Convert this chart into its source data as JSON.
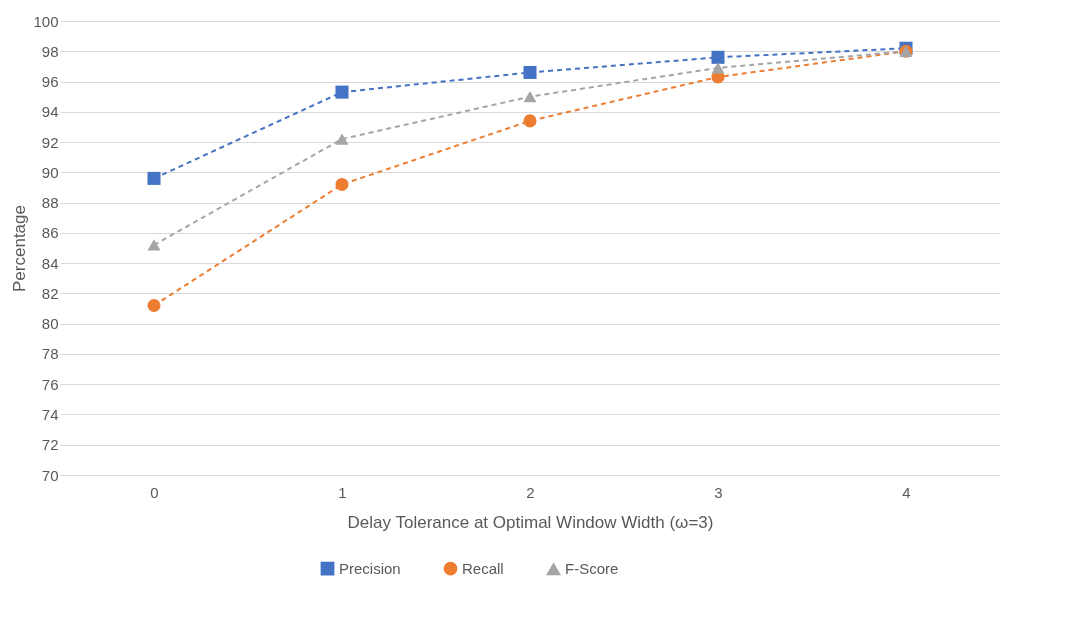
{
  "chart_data": {
    "type": "line",
    "xlabel": "Delay Tolerance at Optimal Window Width (ω=3)",
    "ylabel": "Percentage",
    "categories": [
      "0",
      "1",
      "2",
      "3",
      "4"
    ],
    "series": [
      {
        "name": "Precision",
        "color": "#4472c4",
        "marker": "square",
        "values": [
          89.6,
          95.3,
          96.6,
          97.6,
          98.2
        ]
      },
      {
        "name": "Recall",
        "color": "#ed7d31",
        "marker": "circle",
        "values": [
          81.2,
          89.2,
          93.4,
          96.3,
          98.0
        ]
      },
      {
        "name": "F-Score",
        "color": "#a5a5a5",
        "marker": "triangle",
        "values": [
          85.2,
          92.2,
          95.0,
          96.9,
          98.0
        ]
      }
    ],
    "ylim": [
      70,
      100
    ],
    "yticks": [
      70,
      72,
      74,
      76,
      78,
      80,
      82,
      84,
      86,
      88,
      90,
      92,
      94,
      96,
      98,
      100
    ],
    "grid": "y",
    "legend": "bottom",
    "line_style": "dashed"
  }
}
